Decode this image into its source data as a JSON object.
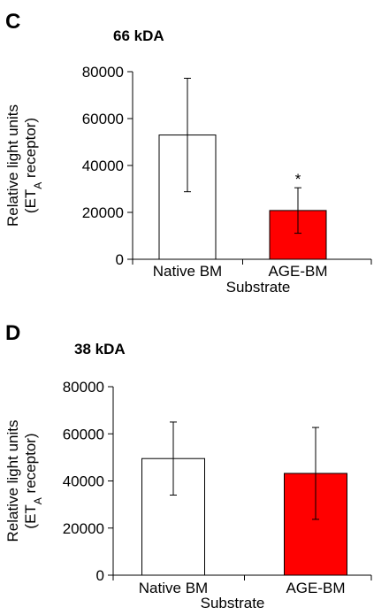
{
  "chart_data": [
    {
      "type": "bar",
      "panel": "C",
      "title": "66 kDA",
      "categories": [
        "Native BM",
        "AGE-BM"
      ],
      "values": [
        53000,
        20800
      ],
      "errors": [
        24200,
        9700
      ],
      "colors": [
        "#ffffff",
        "#ff0000"
      ],
      "annotations": [
        "",
        "*"
      ],
      "xlabel": "Substrate",
      "ylabel_line1": "Relative light units",
      "ylabel_line2_prefix": "(ET",
      "ylabel_line2_sub": "A",
      "ylabel_line2_suffix": " receptor)",
      "ylim": [
        0,
        80000
      ],
      "yticks": [
        0,
        20000,
        40000,
        60000,
        80000
      ],
      "ytick_labels": [
        "0",
        "20000",
        "40000",
        "60000",
        "80000"
      ],
      "grid": false,
      "legend": "none"
    },
    {
      "type": "bar",
      "panel": "D",
      "title": "38 kDA",
      "categories": [
        "Native BM",
        "AGE-BM"
      ],
      "values": [
        49500,
        43200
      ],
      "errors": [
        15500,
        19500
      ],
      "colors": [
        "#ffffff",
        "#ff0000"
      ],
      "annotations": [
        "",
        ""
      ],
      "xlabel": "Substrate",
      "ylabel_line1": "Relative light units",
      "ylabel_line2_prefix": "(ET",
      "ylabel_line2_sub": "A",
      "ylabel_line2_suffix": " receptor)",
      "ylim": [
        0,
        80000
      ],
      "yticks": [
        0,
        20000,
        40000,
        60000,
        80000
      ],
      "ytick_labels": [
        "0",
        "20000",
        "40000",
        "60000",
        "80000"
      ],
      "grid": false,
      "legend": "none"
    }
  ]
}
